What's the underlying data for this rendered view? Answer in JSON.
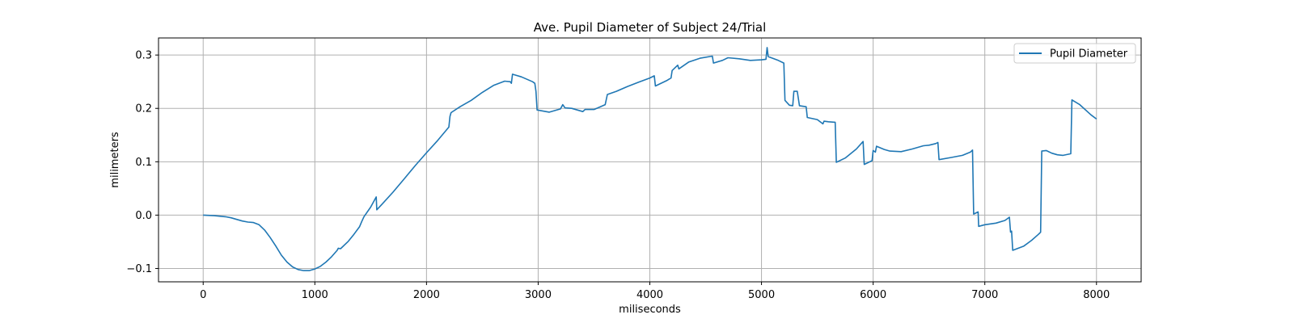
{
  "chart_data": {
    "type": "line",
    "title": "Ave. Pupil Diameter of Subject 24/Trial",
    "xlabel": "miliseconds",
    "ylabel": "milimeters",
    "xlim": [
      -400,
      8400
    ],
    "ylim": [
      -0.125,
      0.332
    ],
    "xticks": [
      0,
      1000,
      2000,
      3000,
      4000,
      5000,
      6000,
      7000,
      8000
    ],
    "xtick_labels": [
      "0",
      "1000",
      "2000",
      "3000",
      "4000",
      "5000",
      "6000",
      "7000",
      "8000"
    ],
    "yticks": [
      -0.1,
      0.0,
      0.1,
      0.2,
      0.3
    ],
    "ytick_labels": [
      "−0.1",
      "0.0",
      "0.1",
      "0.2",
      "0.3"
    ],
    "grid": true,
    "legend_position": "top-right",
    "series": [
      {
        "name": "Pupil Diameter",
        "color": "#1f77b4",
        "points": [
          [
            0,
            0.0
          ],
          [
            100,
            -0.001
          ],
          [
            200,
            -0.003
          ],
          [
            250,
            -0.005
          ],
          [
            300,
            -0.008
          ],
          [
            350,
            -0.011
          ],
          [
            400,
            -0.013
          ],
          [
            450,
            -0.014
          ],
          [
            500,
            -0.018
          ],
          [
            550,
            -0.028
          ],
          [
            600,
            -0.042
          ],
          [
            650,
            -0.058
          ],
          [
            700,
            -0.075
          ],
          [
            750,
            -0.088
          ],
          [
            800,
            -0.097
          ],
          [
            850,
            -0.102
          ],
          [
            900,
            -0.104
          ],
          [
            950,
            -0.104
          ],
          [
            1000,
            -0.101
          ],
          [
            1050,
            -0.096
          ],
          [
            1100,
            -0.088
          ],
          [
            1150,
            -0.078
          ],
          [
            1200,
            -0.066
          ],
          [
            1210,
            -0.062
          ],
          [
            1230,
            -0.063
          ],
          [
            1300,
            -0.049
          ],
          [
            1350,
            -0.036
          ],
          [
            1400,
            -0.022
          ],
          [
            1420,
            -0.012
          ],
          [
            1440,
            -0.003
          ],
          [
            1500,
            0.015
          ],
          [
            1550,
            0.034
          ],
          [
            1555,
            0.01
          ],
          [
            1600,
            0.02
          ],
          [
            1700,
            0.043
          ],
          [
            1800,
            0.068
          ],
          [
            1900,
            0.093
          ],
          [
            2000,
            0.117
          ],
          [
            2100,
            0.14
          ],
          [
            2200,
            0.165
          ],
          [
            2210,
            0.185
          ],
          [
            2220,
            0.192
          ],
          [
            2300,
            0.203
          ],
          [
            2400,
            0.215
          ],
          [
            2500,
            0.23
          ],
          [
            2600,
            0.243
          ],
          [
            2700,
            0.251
          ],
          [
            2750,
            0.25
          ],
          [
            2760,
            0.247
          ],
          [
            2770,
            0.264
          ],
          [
            2850,
            0.259
          ],
          [
            2950,
            0.25
          ],
          [
            2970,
            0.247
          ],
          [
            2980,
            0.232
          ],
          [
            2990,
            0.197
          ],
          [
            3100,
            0.193
          ],
          [
            3200,
            0.199
          ],
          [
            3220,
            0.207
          ],
          [
            3240,
            0.201
          ],
          [
            3300,
            0.2
          ],
          [
            3400,
            0.194
          ],
          [
            3420,
            0.198
          ],
          [
            3500,
            0.198
          ],
          [
            3600,
            0.207
          ],
          [
            3620,
            0.226
          ],
          [
            3700,
            0.232
          ],
          [
            3800,
            0.241
          ],
          [
            3900,
            0.249
          ],
          [
            4000,
            0.257
          ],
          [
            4040,
            0.261
          ],
          [
            4050,
            0.242
          ],
          [
            4150,
            0.252
          ],
          [
            4190,
            0.257
          ],
          [
            4200,
            0.271
          ],
          [
            4250,
            0.281
          ],
          [
            4260,
            0.274
          ],
          [
            4350,
            0.287
          ],
          [
            4450,
            0.294
          ],
          [
            4560,
            0.298
          ],
          [
            4570,
            0.285
          ],
          [
            4650,
            0.29
          ],
          [
            4700,
            0.295
          ],
          [
            4800,
            0.293
          ],
          [
            4900,
            0.29
          ],
          [
            5000,
            0.291
          ],
          [
            5040,
            0.292
          ],
          [
            5050,
            0.314
          ],
          [
            5060,
            0.297
          ],
          [
            5150,
            0.29
          ],
          [
            5200,
            0.285
          ],
          [
            5210,
            0.215
          ],
          [
            5250,
            0.206
          ],
          [
            5280,
            0.205
          ],
          [
            5290,
            0.232
          ],
          [
            5320,
            0.232
          ],
          [
            5340,
            0.205
          ],
          [
            5400,
            0.203
          ],
          [
            5410,
            0.183
          ],
          [
            5500,
            0.179
          ],
          [
            5550,
            0.171
          ],
          [
            5560,
            0.176
          ],
          [
            5600,
            0.175
          ],
          [
            5660,
            0.174
          ],
          [
            5670,
            0.099
          ],
          [
            5750,
            0.107
          ],
          [
            5850,
            0.124
          ],
          [
            5910,
            0.138
          ],
          [
            5920,
            0.095
          ],
          [
            5990,
            0.102
          ],
          [
            6000,
            0.121
          ],
          [
            6020,
            0.118
          ],
          [
            6030,
            0.129
          ],
          [
            6100,
            0.123
          ],
          [
            6150,
            0.12
          ],
          [
            6250,
            0.119
          ],
          [
            6350,
            0.124
          ],
          [
            6450,
            0.13
          ],
          [
            6500,
            0.131
          ],
          [
            6560,
            0.134
          ],
          [
            6580,
            0.136
          ],
          [
            6590,
            0.104
          ],
          [
            6700,
            0.108
          ],
          [
            6800,
            0.112
          ],
          [
            6870,
            0.118
          ],
          [
            6890,
            0.122
          ],
          [
            6900,
            0.002
          ],
          [
            6940,
            0.006
          ],
          [
            6945,
            -0.021
          ],
          [
            7000,
            -0.018
          ],
          [
            7100,
            -0.015
          ],
          [
            7180,
            -0.01
          ],
          [
            7220,
            -0.004
          ],
          [
            7230,
            -0.032
          ],
          [
            7240,
            -0.03
          ],
          [
            7250,
            -0.066
          ],
          [
            7350,
            -0.058
          ],
          [
            7420,
            -0.047
          ],
          [
            7480,
            -0.036
          ],
          [
            7500,
            -0.032
          ],
          [
            7510,
            0.12
          ],
          [
            7550,
            0.121
          ],
          [
            7600,
            0.116
          ],
          [
            7650,
            0.113
          ],
          [
            7700,
            0.112
          ],
          [
            7770,
            0.115
          ],
          [
            7780,
            0.216
          ],
          [
            7850,
            0.207
          ],
          [
            7950,
            0.188
          ],
          [
            8000,
            0.18
          ]
        ]
      }
    ]
  }
}
